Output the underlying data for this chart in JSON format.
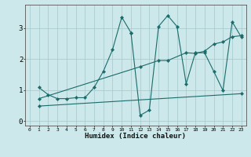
{
  "xlabel": "Humidex (Indice chaleur)",
  "bg_color": "#cce8ea",
  "grid_color": "#aacdd0",
  "line_color": "#1a6b6b",
  "xlim": [
    -0.5,
    23.5
  ],
  "ylim": [
    -0.15,
    3.75
  ],
  "xticks": [
    0,
    1,
    2,
    3,
    4,
    5,
    6,
    7,
    8,
    9,
    10,
    11,
    12,
    13,
    14,
    15,
    16,
    17,
    18,
    19,
    20,
    21,
    22,
    23
  ],
  "yticks": [
    0,
    1,
    2,
    3
  ],
  "series": [
    {
      "x": [
        1,
        2,
        3,
        4,
        5,
        6,
        7,
        8,
        9,
        10,
        11
      ],
      "y": [
        1.08,
        0.85,
        0.72,
        0.72,
        0.75,
        0.75,
        1.08,
        1.6,
        2.3,
        3.35,
        2.85
      ]
    },
    {
      "x": [
        11,
        12,
        13,
        14,
        15,
        16,
        17,
        18,
        19,
        20,
        21,
        22,
        23
      ],
      "y": [
        2.85,
        0.18,
        0.35,
        3.05,
        3.4,
        3.05,
        1.2,
        2.2,
        2.2,
        1.6,
        0.98,
        3.2,
        2.7
      ]
    },
    {
      "x": [
        1,
        12,
        14,
        15,
        17,
        18,
        19,
        20,
        21,
        22,
        23
      ],
      "y": [
        0.72,
        1.75,
        1.95,
        1.95,
        2.2,
        2.18,
        2.25,
        2.48,
        2.55,
        2.72,
        2.75
      ]
    },
    {
      "x": [
        1,
        23
      ],
      "y": [
        0.48,
        0.88
      ]
    }
  ]
}
